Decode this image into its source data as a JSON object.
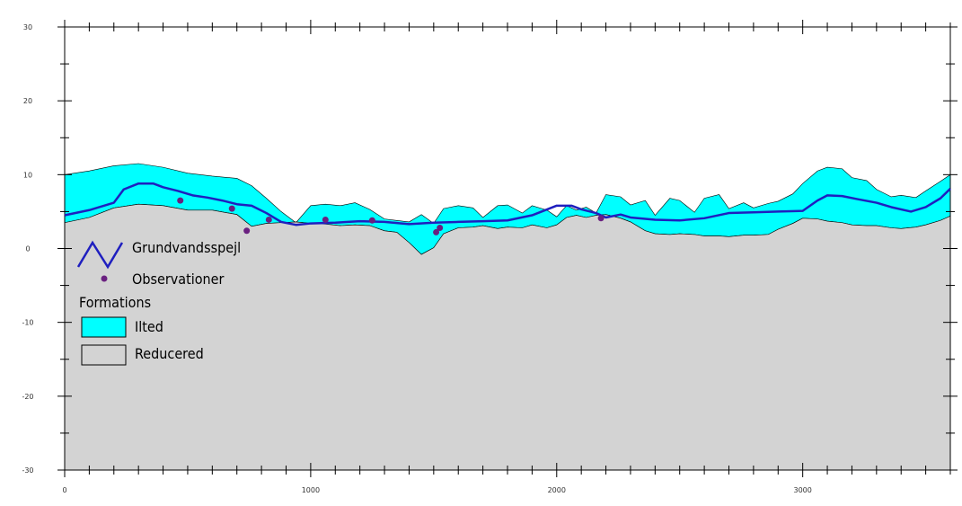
{
  "chart_data": {
    "type": "area",
    "xlim": [
      0,
      3600
    ],
    "ylim": [
      -30,
      30
    ],
    "x_ticks": [
      0,
      1000,
      2000,
      3000
    ],
    "y_ticks": [
      30,
      20,
      10,
      0,
      -10,
      -20,
      -30
    ],
    "grid": false,
    "legend_position": "left",
    "surface_top": {
      "x": [
        0,
        100,
        200,
        300,
        400,
        500,
        600,
        700,
        760,
        820,
        880,
        940,
        1000,
        1060,
        1120,
        1180,
        1240,
        1300,
        1350,
        1400,
        1450,
        1500,
        1540,
        1600,
        1660,
        1700,
        1760,
        1800,
        1860,
        1900,
        1960,
        2000,
        2040,
        2080,
        2120,
        2160,
        2200,
        2260,
        2300,
        2360,
        2400,
        2460,
        2500,
        2560,
        2600,
        2660,
        2700,
        2760,
        2800,
        2860,
        2900,
        2960,
        3000,
        3060,
        3100,
        3160,
        3200,
        3260,
        3300,
        3360,
        3400,
        3460,
        3500,
        3560,
        3600
      ],
      "y": [
        10,
        10.5,
        11.2,
        11.5,
        11,
        10.2,
        9.8,
        9.5,
        8.5,
        6.8,
        5,
        3.5,
        5.8,
        6,
        5.8,
        6.2,
        5.3,
        4,
        3.8,
        3.6,
        4.6,
        3.4,
        5.4,
        5.8,
        5.5,
        4.2,
        5.8,
        5.9,
        4.8,
        5.8,
        5.2,
        4.3,
        5.8,
        5.2,
        5.6,
        4.8,
        7.3,
        7,
        5.9,
        6.5,
        4.5,
        6.8,
        6.5,
        4.9,
        6.8,
        7.3,
        5.4,
        6.2,
        5.5,
        6.1,
        6.4,
        7.4,
        8.8,
        10.5,
        11,
        10.8,
        9.6,
        9.2,
        8,
        7,
        7.2,
        6.9,
        7.8,
        9.1,
        10
      ]
    },
    "surface_base": {
      "x": [
        0,
        100,
        200,
        300,
        400,
        500,
        600,
        700,
        760,
        820,
        880,
        940,
        1000,
        1060,
        1120,
        1180,
        1240,
        1300,
        1350,
        1400,
        1450,
        1500,
        1540,
        1600,
        1660,
        1700,
        1760,
        1800,
        1860,
        1900,
        1960,
        2000,
        2040,
        2080,
        2120,
        2160,
        2200,
        2260,
        2300,
        2360,
        2400,
        2460,
        2500,
        2560,
        2600,
        2660,
        2700,
        2760,
        2800,
        2860,
        2900,
        2960,
        3000,
        3060,
        3100,
        3160,
        3200,
        3260,
        3300,
        3360,
        3400,
        3460,
        3500,
        3560,
        3600
      ],
      "y": [
        3.5,
        4.2,
        5.5,
        6,
        5.8,
        5.2,
        5.2,
        4.6,
        3,
        3.4,
        3.5,
        3.6,
        3.4,
        3.3,
        3.1,
        3.2,
        3.1,
        2.4,
        2.2,
        0.8,
        -0.8,
        0.1,
        2,
        2.8,
        2.9,
        3.1,
        2.7,
        2.9,
        2.8,
        3.2,
        2.8,
        3.2,
        4.2,
        4.5,
        4.2,
        4.5,
        4.6,
        4.1,
        3.6,
        2.4,
        2,
        1.9,
        2,
        1.9,
        1.7,
        1.7,
        1.6,
        1.8,
        1.8,
        1.9,
        2.6,
        3.4,
        4.1,
        4,
        3.7,
        3.5,
        3.2,
        3.1,
        3.1,
        2.8,
        2.7,
        2.9,
        3.2,
        3.8,
        4.4
      ]
    },
    "series": [
      {
        "name": "Grundvandsspejl",
        "x": [
          0,
          100,
          200,
          240,
          300,
          360,
          400,
          460,
          520,
          580,
          640,
          700,
          760,
          820,
          880,
          940,
          1000,
          1100,
          1200,
          1300,
          1400,
          1500,
          1600,
          1700,
          1800,
          1900,
          2000,
          2060,
          2100,
          2160,
          2200,
          2260,
          2300,
          2400,
          2500,
          2600,
          2700,
          2800,
          2900,
          3000,
          3060,
          3100,
          3160,
          3220,
          3300,
          3360,
          3440,
          3500,
          3560,
          3600
        ],
        "y": [
          4.5,
          5.2,
          6.2,
          8,
          8.8,
          8.8,
          8.3,
          7.8,
          7.2,
          6.9,
          6.5,
          6,
          5.8,
          4.8,
          3.6,
          3.2,
          3.4,
          3.5,
          3.7,
          3.6,
          3.3,
          3.5,
          3.6,
          3.7,
          3.8,
          4.5,
          5.8,
          5.8,
          5.3,
          4.8,
          4.2,
          4.6,
          4.2,
          3.9,
          3.8,
          4.1,
          4.8,
          4.9,
          5,
          5.1,
          6.5,
          7.2,
          7.1,
          6.7,
          6.2,
          5.6,
          5.0,
          5.6,
          6.8,
          8.1
        ]
      },
      {
        "name": "Observationer",
        "type": "scatter",
        "x": [
          470,
          680,
          740,
          830,
          1060,
          1250,
          1510,
          1525,
          2180
        ],
        "y": [
          6.5,
          5.4,
          2.4,
          3.9,
          3.9,
          3.8,
          2.2,
          2.8,
          4.1
        ]
      }
    ],
    "legend": {
      "entries": [
        {
          "label": "Grundvandsspejl",
          "kind": "line",
          "color": "#1f1fbf"
        },
        {
          "label": "Observationer",
          "kind": "marker",
          "color": "#6a2080"
        }
      ],
      "section_title": "Formations",
      "formations": [
        {
          "label": "Ilted",
          "color": "#00ffff"
        },
        {
          "label": "Reducered",
          "color": "#d3d3d3"
        }
      ]
    },
    "colors": {
      "ilted": "#00ffff",
      "reducered": "#d3d3d3",
      "water_table": "#1f1fbf",
      "observations": "#6a2080"
    }
  }
}
